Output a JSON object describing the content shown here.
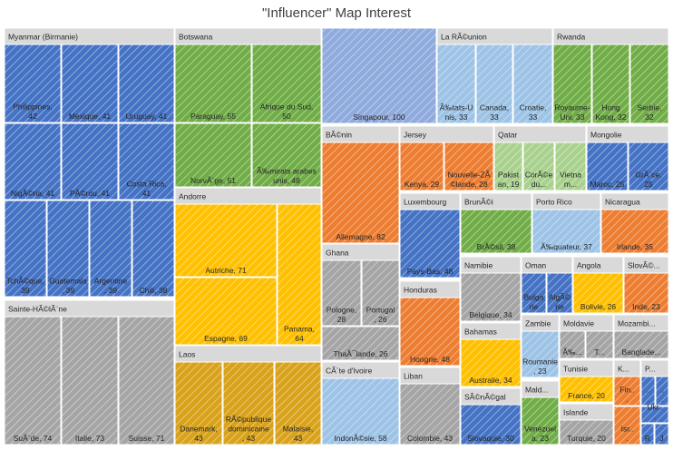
{
  "chart_data": {
    "type": "treemap",
    "title": "\"Influencer\" Map Interest",
    "colors": {
      "blue": "#4472c4",
      "green": "#70ad47",
      "orange": "#ed7d31",
      "gold": "#ffc000",
      "gray": "#a5a5a5",
      "lightblue": "#9dc3e6"
    },
    "groups": [
      {
        "name": "Myanmar (Birmanie)",
        "color": "blue",
        "items": [
          {
            "label": "Philippines, 42",
            "value": 42
          },
          {
            "label": "Mexique, 41",
            "value": 41
          },
          {
            "label": "Uruguay, 41",
            "value": 41
          },
          {
            "label": "NigÃ©ria, 41",
            "value": 41
          },
          {
            "label": "PÃ©rou, 41",
            "value": 41
          },
          {
            "label": "Costa Rica, 41",
            "value": 41
          },
          {
            "label": "TchÃ©que, 39",
            "value": 39
          },
          {
            "label": "Guatemala, 39",
            "value": 39
          },
          {
            "label": "Argentine, 39",
            "value": 39
          },
          {
            "label": "Chili, 38",
            "value": 38
          }
        ]
      },
      {
        "name": "Sainte-HÃ©lÃ¨ne",
        "color": "gray",
        "items": [
          {
            "label": "SuÃ¨de, 74",
            "value": 74
          },
          {
            "label": "Italie, 73",
            "value": 73
          },
          {
            "label": "Suisse, 71",
            "value": 71
          }
        ]
      },
      {
        "name": "Botswana",
        "color": "green",
        "items": [
          {
            "label": "Paraguay, 55",
            "value": 55
          },
          {
            "label": "Afrique du Sud, 50",
            "value": 50
          },
          {
            "label": "NorvÃ¨ge, 51",
            "value": 51
          },
          {
            "label": "Ã‰mirats arabes unis, 48",
            "value": 48
          }
        ]
      },
      {
        "name": "Andorre",
        "color": "gold",
        "items": [
          {
            "label": "Autriche, 71",
            "value": 71
          },
          {
            "label": "Espagne, 69",
            "value": 69
          },
          {
            "label": "Panama, 64",
            "value": 64
          }
        ]
      },
      {
        "name": "Laos",
        "color": "gold-dark",
        "items": [
          {
            "label": "Danemark, 43",
            "value": 43
          },
          {
            "label": "RÃ©publique dominicaine, 43",
            "value": 43
          },
          {
            "label": "Malaisie, 43",
            "value": 43
          }
        ]
      },
      {
        "name": "",
        "color": "blue-light",
        "items": [
          {
            "label": "Singapour, 100",
            "value": 100
          }
        ]
      },
      {
        "name": "La RÃ©union",
        "color": "lightblue",
        "items": [
          {
            "label": "Ã‰tats-Unis, 33",
            "value": 33
          },
          {
            "label": "Canada, 33",
            "value": 33
          },
          {
            "label": "Croatie, 33",
            "value": 33
          }
        ]
      },
      {
        "name": "Rwanda",
        "color": "green",
        "items": [
          {
            "label": "Royaume-Uni, 33",
            "value": 33
          },
          {
            "label": "Hong Kong, 32",
            "value": 32
          },
          {
            "label": "Serbie, 32",
            "value": 32
          }
        ]
      },
      {
        "name": "BÃ©nin",
        "color": "orange",
        "items": [
          {
            "label": "Allemagne, 82",
            "value": 82
          }
        ]
      },
      {
        "name": "Jersey",
        "color": "orange",
        "items": [
          {
            "label": "Kenya, 29",
            "value": 29
          },
          {
            "label": "Nouvelle-ZÃ©lande, 28",
            "value": 28
          }
        ]
      },
      {
        "name": "Qatar",
        "color": "green-light",
        "items": [
          {
            "label": "Pakistan, 19",
            "value": 19
          },
          {
            "label": "CorÃ©e du...",
            "value": 19
          },
          {
            "label": "Vietnam...",
            "value": 19
          }
        ]
      },
      {
        "name": "Mongolie",
        "color": "blue",
        "items": [
          {
            "label": "Maroc, 25",
            "value": 25
          },
          {
            "label": "GrÃ¨ce, 25",
            "value": 25
          }
        ]
      },
      {
        "name": "Ghana",
        "color": "gray",
        "items": [
          {
            "label": "Pologne, 28",
            "value": 28
          },
          {
            "label": "Portugal, 26",
            "value": 26
          },
          {
            "label": "ThaÃ¯lande, 26",
            "value": 26
          }
        ]
      },
      {
        "name": "CÃ´te d'Ivoire",
        "color": "lightblue",
        "items": [
          {
            "label": "IndonÃ©sie, 58",
            "value": 58
          }
        ]
      },
      {
        "name": "Luxembourg",
        "color": "blue",
        "items": [
          {
            "label": "Pays-Bas, 48",
            "value": 48
          }
        ]
      },
      {
        "name": "Honduras",
        "color": "orange",
        "items": [
          {
            "label": "Hongrie, 48",
            "value": 48
          }
        ]
      },
      {
        "name": "Liban",
        "color": "gray",
        "items": [
          {
            "label": "Colombie, 43",
            "value": 43
          }
        ]
      },
      {
        "name": "BrunÃ©i",
        "color": "green",
        "items": [
          {
            "label": "BrÃ©sil, 38",
            "value": 38
          }
        ]
      },
      {
        "name": "Porto Rico",
        "color": "lightblue",
        "items": [
          {
            "label": "Ã‰quateur, 37",
            "value": 37
          }
        ]
      },
      {
        "name": "Nicaragua",
        "color": "orange",
        "items": [
          {
            "label": "Irlande, 35",
            "value": 35
          }
        ]
      },
      {
        "name": "Namibie",
        "color": "gray",
        "items": [
          {
            "label": "Belgique, 34",
            "value": 34
          }
        ]
      },
      {
        "name": "Bahamas",
        "color": "gold",
        "items": [
          {
            "label": "Australie, 34",
            "value": 34
          }
        ]
      },
      {
        "name": "SÃ©nÃ©gal",
        "color": "blue",
        "items": [
          {
            "label": "Slovaquie, 30",
            "value": 30
          }
        ]
      },
      {
        "name": "Oman",
        "color": "blue",
        "items": [
          {
            "label": "Bulgarie",
            "value": 0
          },
          {
            "label": "AlgÃ©rie",
            "value": 0
          }
        ]
      },
      {
        "name": "Angola",
        "color": "gold",
        "items": [
          {
            "label": "Bolivie, 26",
            "value": 26
          }
        ]
      },
      {
        "name": "SlovÃ©...",
        "color": "orange",
        "items": [
          {
            "label": "Inde, 23",
            "value": 23
          }
        ]
      },
      {
        "name": "Zambie",
        "color": "lightblue",
        "items": [
          {
            "label": "Roumanie, 23",
            "value": 23
          }
        ]
      },
      {
        "name": "MaldivÃ­",
        "color": "green",
        "items": [
          {
            "label": "Venezuela, 23",
            "value": 23
          }
        ]
      },
      {
        "name": "Moldavie",
        "color": "gray",
        "items": [
          {
            "label": "Ã‰...",
            "value": 0
          },
          {
            "label": "T...",
            "value": 0
          }
        ]
      },
      {
        "name": "Tunisie",
        "color": "gold",
        "items": [
          {
            "label": "France, 20",
            "value": 20
          }
        ]
      },
      {
        "name": "Islande",
        "color": "gray",
        "items": [
          {
            "label": "Turquie, 20",
            "value": 20
          }
        ]
      },
      {
        "name": "Mozambi...",
        "color": "gray",
        "items": [
          {
            "label": "Banglade...",
            "value": 0
          }
        ]
      },
      {
        "name": "Ko...",
        "color": "orange",
        "items": [
          {
            "label": "Fin...",
            "value": 0
          },
          {
            "label": "Isr...",
            "value": 0
          }
        ]
      },
      {
        "name": "P...",
        "color": "blue",
        "items": [
          {
            "label": "...",
            "value": 0
          },
          {
            "label": "...",
            "value": 0
          },
          {
            "label": "Ukr...",
            "value": 0
          },
          {
            "label": "R",
            "value": 0
          },
          {
            "label": "J",
            "value": 0
          }
        ]
      }
    ]
  }
}
